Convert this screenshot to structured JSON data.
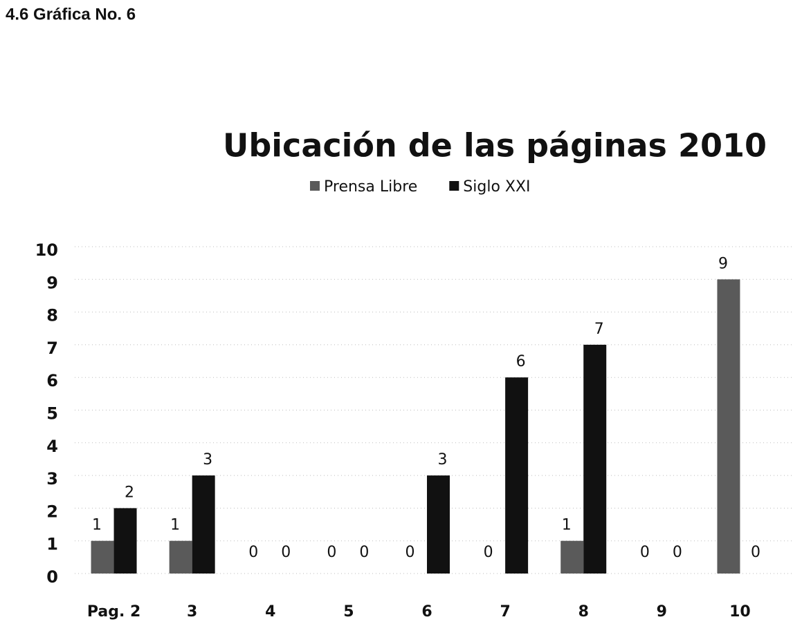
{
  "heading": "4.6 Gráfica No. 6",
  "chart_data": {
    "type": "bar",
    "title": "Ubicación de las páginas 2010",
    "categories": [
      "Pag. 2",
      "3",
      "4",
      "5",
      "6",
      "7",
      "8",
      "9",
      "10"
    ],
    "series": [
      {
        "name": "Prensa Libre",
        "color": "#5a5a5a",
        "values": [
          1,
          1,
          0,
          0,
          0,
          0,
          1,
          0,
          9
        ]
      },
      {
        "name": "Siglo XXI",
        "color": "#111111",
        "values": [
          2,
          3,
          0,
          0,
          3,
          6,
          7,
          0,
          0
        ]
      }
    ],
    "ylim": [
      0,
      10
    ],
    "yticks": [
      0,
      1,
      2,
      3,
      4,
      5,
      6,
      7,
      8,
      9,
      10
    ],
    "grid": true,
    "legend": "top"
  }
}
